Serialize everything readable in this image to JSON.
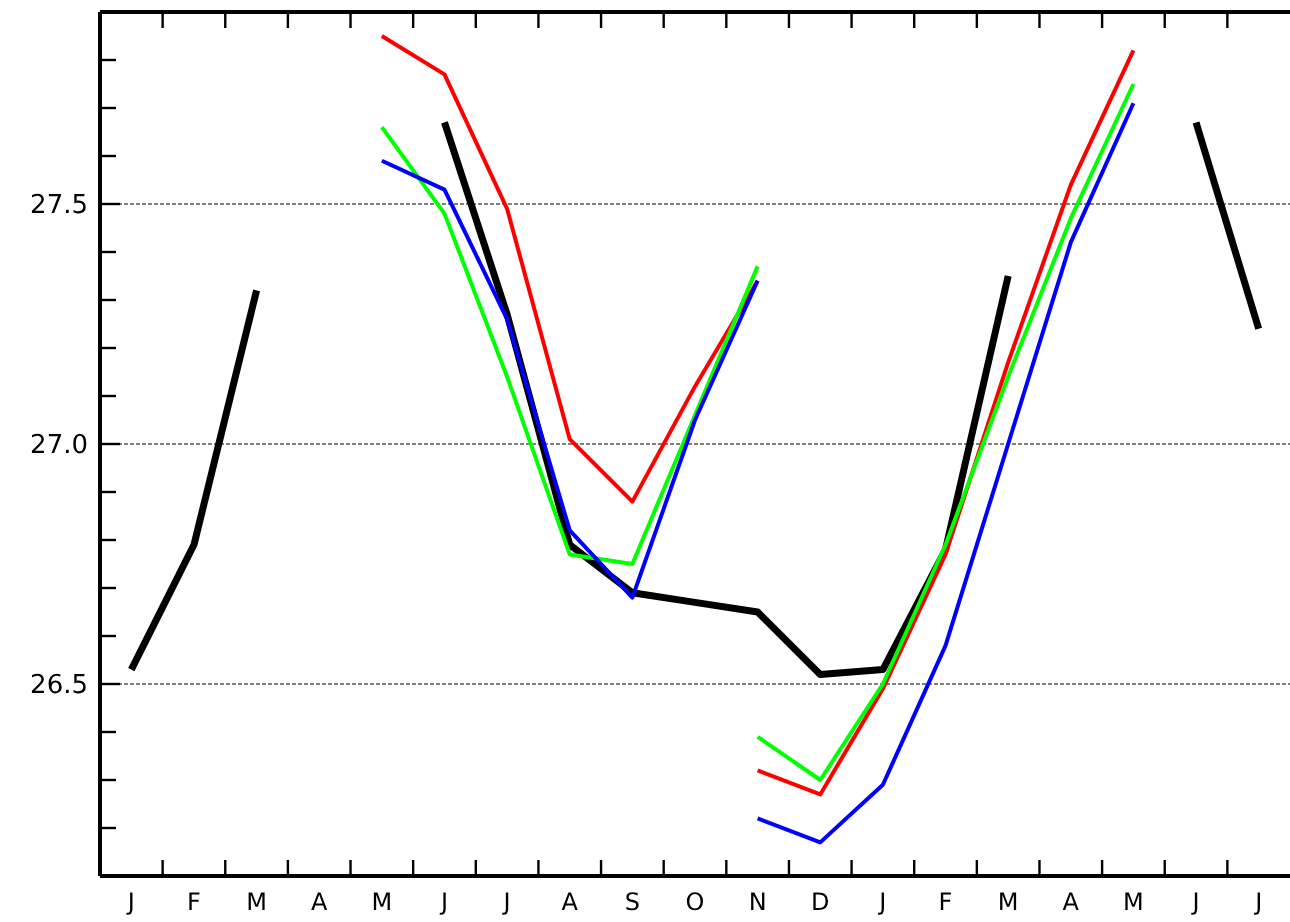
{
  "chart_data": {
    "type": "line",
    "categories": [
      "J",
      "F",
      "M",
      "A",
      "M",
      "J",
      "J",
      "A",
      "S",
      "O",
      "N",
      "D",
      "J",
      "F",
      "M",
      "A",
      "M",
      "J",
      "J"
    ],
    "series": [
      {
        "color": "#000000",
        "values": [
          26.53,
          26.79,
          27.32,
          null,
          null,
          27.67,
          27.27,
          26.79,
          26.69,
          26.67,
          26.65,
          26.52,
          26.53,
          26.78,
          27.35,
          null,
          null,
          27.67,
          27.24
        ]
      },
      {
        "color": "#ff0000",
        "values": [
          null,
          null,
          null,
          null,
          27.85,
          27.77,
          27.49,
          27.01,
          26.88,
          27.12,
          27.34,
          null,
          null,
          null,
          null,
          null,
          null,
          null,
          null
        ]
      },
      {
        "color": "#00ff00",
        "values": [
          null,
          null,
          null,
          null,
          27.66,
          27.48,
          27.14,
          26.77,
          26.75,
          27.06,
          27.37,
          null,
          null,
          null,
          null,
          null,
          null,
          null,
          null
        ]
      },
      {
        "color": "#0000ff",
        "values": [
          null,
          null,
          null,
          null,
          27.59,
          27.53,
          27.26,
          26.82,
          26.68,
          27.05,
          27.34,
          null,
          null,
          null,
          null,
          null,
          null,
          null,
          null
        ]
      },
      {
        "color": "#ff0000",
        "values": [
          null,
          null,
          null,
          null,
          null,
          null,
          null,
          null,
          null,
          null,
          26.32,
          26.27,
          26.49,
          26.77,
          27.17,
          27.54,
          27.82,
          null,
          null
        ]
      },
      {
        "color": "#00ff00",
        "values": [
          null,
          null,
          null,
          null,
          null,
          null,
          null,
          null,
          null,
          null,
          26.39,
          26.3,
          26.5,
          26.79,
          27.14,
          27.47,
          27.75,
          null,
          null
        ]
      },
      {
        "color": "#0000ff",
        "values": [
          null,
          null,
          null,
          null,
          null,
          null,
          null,
          null,
          null,
          null,
          26.22,
          26.17,
          26.29,
          26.58,
          27.0,
          27.42,
          27.71,
          null,
          null
        ]
      }
    ],
    "ylim": [
      26.1,
      27.9
    ],
    "yticks": [
      {
        "value": 26.2,
        "label": null
      },
      {
        "value": 26.3,
        "label": null
      },
      {
        "value": 26.4,
        "label": null
      },
      {
        "value": 26.5,
        "label": "26.5"
      },
      {
        "value": 26.6,
        "label": null
      },
      {
        "value": 26.7,
        "label": null
      },
      {
        "value": 26.8,
        "label": null
      },
      {
        "value": 26.9,
        "label": null
      },
      {
        "value": 27.0,
        "label": "27.0"
      },
      {
        "value": 27.1,
        "label": null
      },
      {
        "value": 27.2,
        "label": null
      },
      {
        "value": 27.3,
        "label": null
      },
      {
        "value": 27.4,
        "label": null
      },
      {
        "value": 27.5,
        "label": "27.5"
      },
      {
        "value": 27.6,
        "label": null
      },
      {
        "value": 27.7,
        "label": null
      },
      {
        "value": 27.8,
        "label": null
      }
    ],
    "grid": "y",
    "marker": "none",
    "line_style": "solid"
  }
}
